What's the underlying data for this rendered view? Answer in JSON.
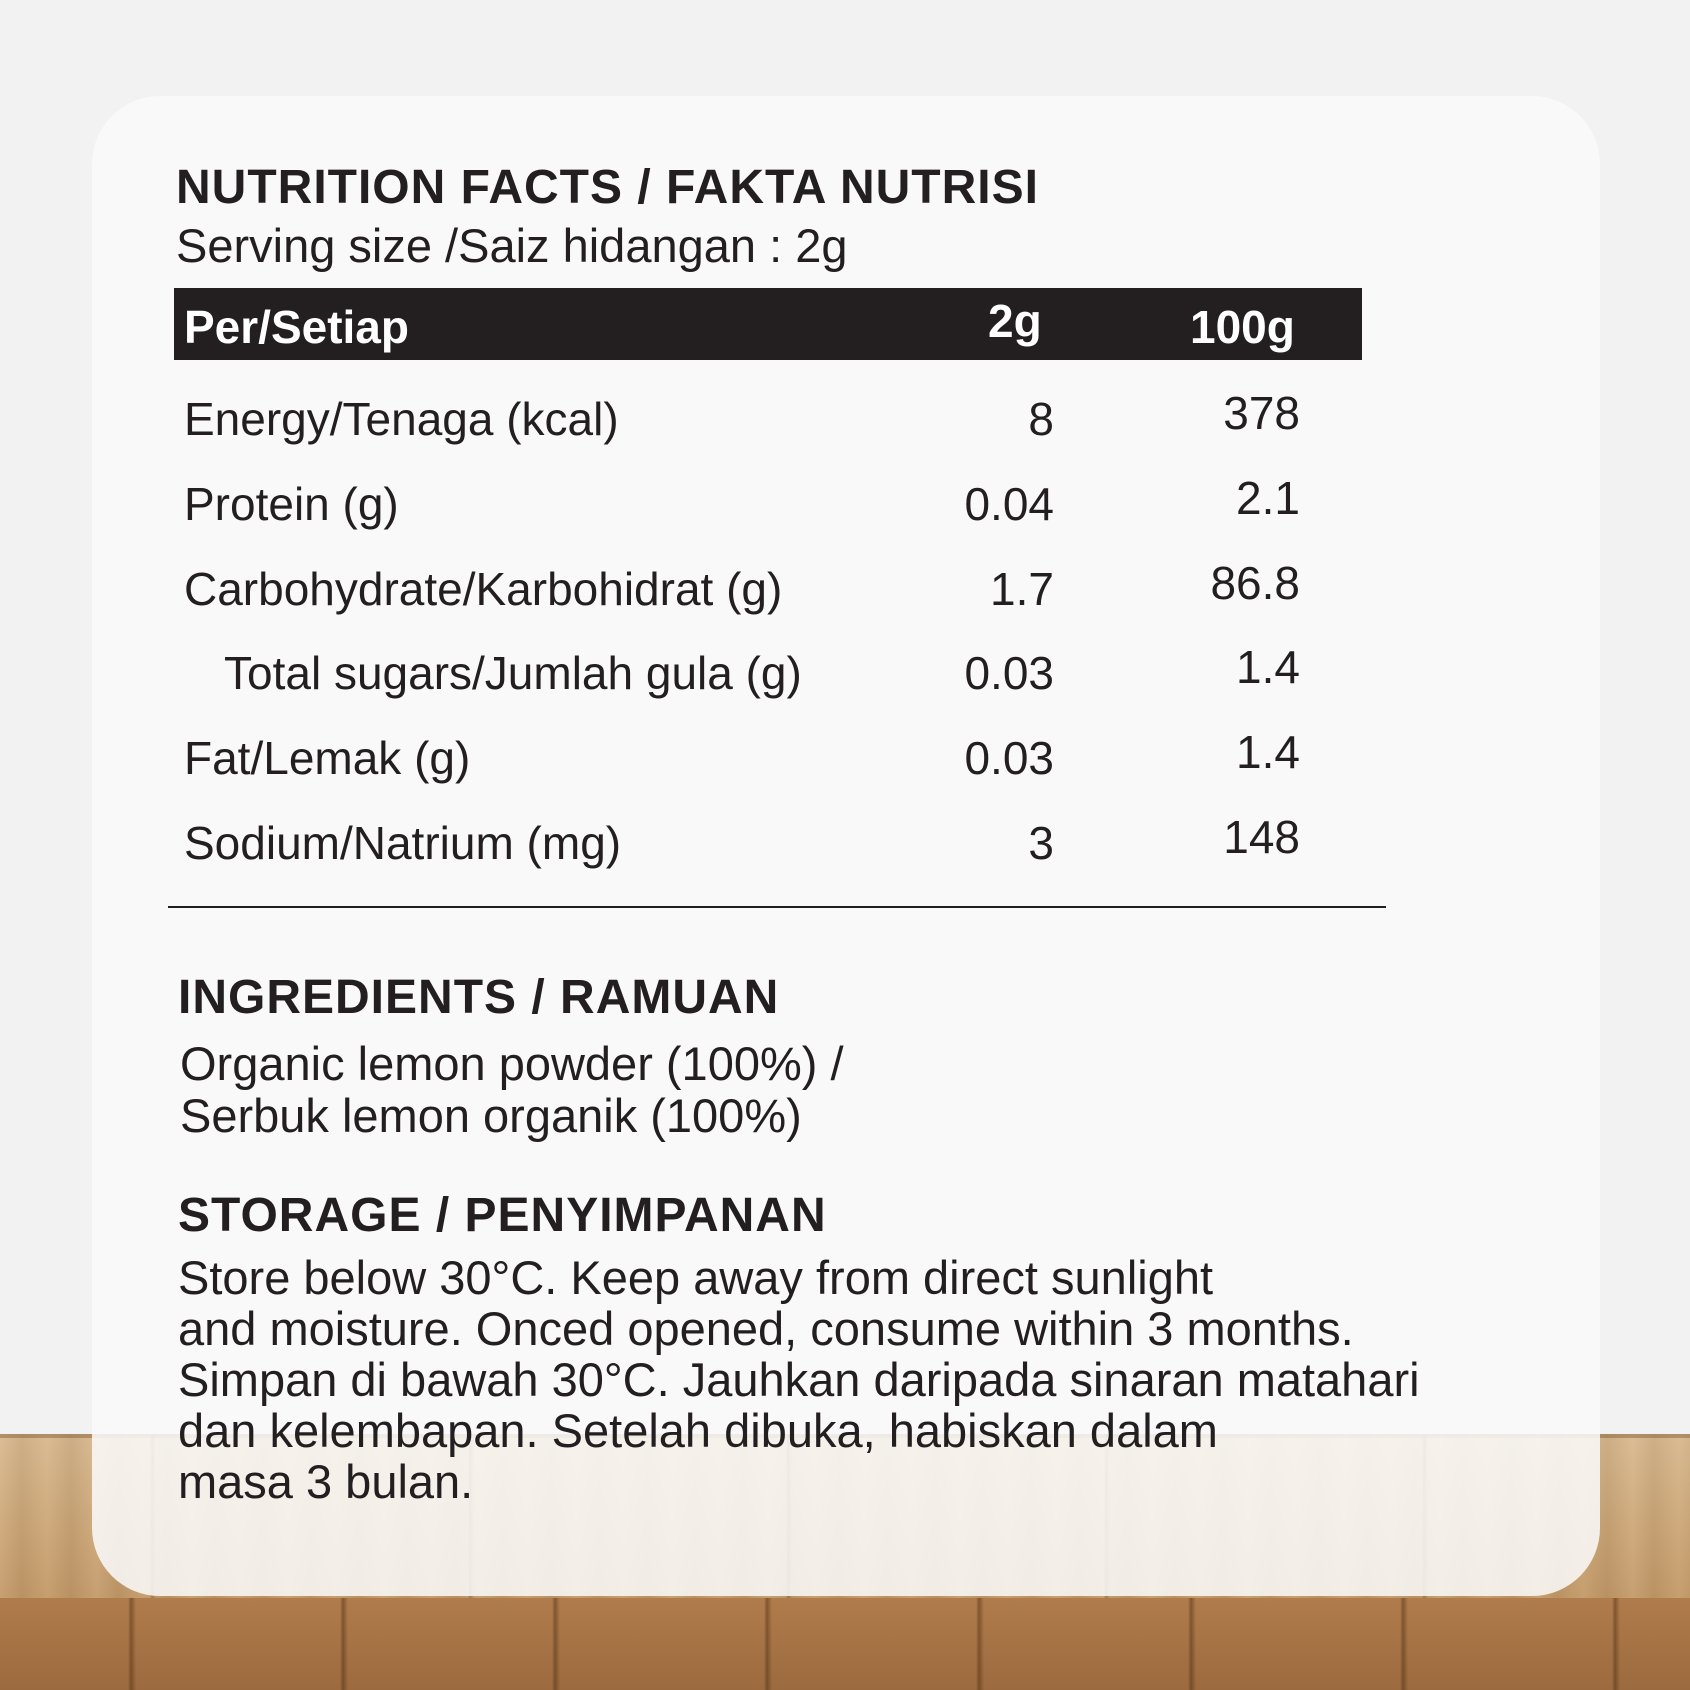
{
  "nutrition": {
    "title": "NUTRITION FACTS / FAKTA NUTRISI",
    "serving_size": "Serving size /Saiz hidangan : 2g",
    "header": {
      "label": "Per/Setiap",
      "col1": "2g",
      "col2": "100g"
    },
    "rows": [
      {
        "label": "Energy/Tenaga (kcal)",
        "per_serving": "8",
        "per_100g": "378"
      },
      {
        "label": "Protein (g)",
        "per_serving": "0.04",
        "per_100g": "2.1"
      },
      {
        "label": "Carbohydrate/Karbohidrat (g)",
        "per_serving": "1.7",
        "per_100g": "86.8"
      },
      {
        "label": "Total sugars/Jumlah gula (g)",
        "per_serving": "0.03",
        "per_100g": "1.4"
      },
      {
        "label": "Fat/Lemak (g)",
        "per_serving": "0.03",
        "per_100g": "1.4"
      },
      {
        "label": "Sodium/Natrium (mg)",
        "per_serving": "3",
        "per_100g": "148"
      }
    ]
  },
  "ingredients": {
    "title": "INGREDIENTS / RAMUAN",
    "lines": [
      "Organic lemon powder (100%) /",
      "Serbuk lemon organik (100%)"
    ]
  },
  "storage": {
    "title": "STORAGE / PENYIMPANAN",
    "lines": [
      "Store below 30°C. Keep away from direct sunlight",
      "and moisture. Onced opened, consume within 3 months.",
      "Simpan di bawah 30°C. Jauhkan daripada sinaran matahari",
      "dan kelembapan. Setelah dibuka, habiskan dalam",
      "masa 3 bulan."
    ]
  },
  "colors": {
    "text": "#231f20",
    "header_bg": "#231f20",
    "header_text": "#ffffff",
    "card_bg": "#fafafa",
    "page_bg": "#f2f2f2"
  }
}
